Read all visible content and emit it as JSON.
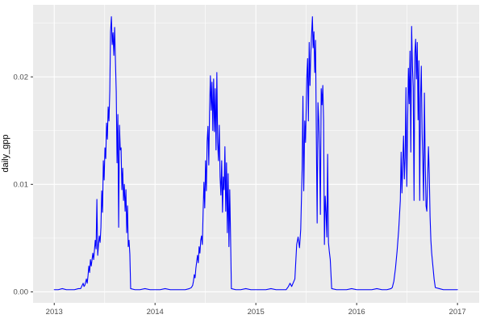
{
  "figure": {
    "panel_bg": "#EBEBEB",
    "grid_color": "#FFFFFF",
    "tick_text_color": "#4D4D4D",
    "tick_mark_color": "#333333",
    "axis_title_color": "#000000",
    "line_color": "#0000FF"
  },
  "chart_data": {
    "type": "line",
    "title": "",
    "xlabel": "",
    "ylabel": "daily_gpp",
    "grid": true,
    "legend": false,
    "xlim": [
      2012.79,
      2017.215
    ],
    "ylim": [
      -0.00102,
      0.0267
    ],
    "x_ticks_major": [
      {
        "value": 2013,
        "label": "2013"
      },
      {
        "value": 2014,
        "label": "2014"
      },
      {
        "value": 2015,
        "label": "2015"
      },
      {
        "value": 2016,
        "label": "2016"
      },
      {
        "value": 2017,
        "label": "2017"
      }
    ],
    "x_ticks_minor": [
      2013.5,
      2014.5,
      2015.5,
      2016.5
    ],
    "y_ticks_major": [
      {
        "value": 0,
        "label": "0.00"
      },
      {
        "value": 0.01,
        "label": "0.01"
      },
      {
        "value": 0.02,
        "label": "0.02"
      }
    ],
    "y_ticks_minor": [
      0.005,
      0.015,
      0.025
    ],
    "series": [
      {
        "name": "daily_gpp",
        "color": "#0000FF",
        "points": [
          [
            2013.0,
            0.0002
          ],
          [
            2013.04,
            0.0002
          ],
          [
            2013.08,
            0.0003
          ],
          [
            2013.12,
            0.0002
          ],
          [
            2013.16,
            0.0002
          ],
          [
            2013.2,
            0.0002
          ],
          [
            2013.24,
            0.0003
          ],
          [
            2013.262,
            0.0003
          ],
          [
            2013.287,
            0.0008
          ],
          [
            2013.295,
            0.0005
          ],
          [
            2013.303,
            0.0006
          ],
          [
            2013.319,
            0.0012
          ],
          [
            2013.327,
            0.0008
          ],
          [
            2013.335,
            0.0015
          ],
          [
            2013.343,
            0.0024
          ],
          [
            2013.351,
            0.0018
          ],
          [
            2013.359,
            0.003
          ],
          [
            2013.367,
            0.0024
          ],
          [
            2013.383,
            0.0036
          ],
          [
            2013.391,
            0.003
          ],
          [
            2013.407,
            0.0048
          ],
          [
            2013.415,
            0.004
          ],
          [
            2013.423,
            0.0086
          ],
          [
            2013.431,
            0.0034
          ],
          [
            2013.439,
            0.0044
          ],
          [
            2013.447,
            0.0052
          ],
          [
            2013.455,
            0.0046
          ],
          [
            2013.463,
            0.006
          ],
          [
            2013.471,
            0.0094
          ],
          [
            2013.479,
            0.0074
          ],
          [
            2013.487,
            0.0122
          ],
          [
            2013.495,
            0.0104
          ],
          [
            2013.503,
            0.0134
          ],
          [
            2013.511,
            0.0124
          ],
          [
            2013.519,
            0.0157
          ],
          [
            2013.527,
            0.0142
          ],
          [
            2013.535,
            0.0172
          ],
          [
            2013.543,
            0.0159
          ],
          [
            2013.551,
            0.0187
          ],
          [
            2013.559,
            0.0242
          ],
          [
            2013.567,
            0.0256
          ],
          [
            2013.575,
            0.023
          ],
          [
            2013.583,
            0.0241
          ],
          [
            2013.591,
            0.022
          ],
          [
            2013.599,
            0.0246
          ],
          [
            2013.607,
            0.0215
          ],
          [
            2013.615,
            0.0186
          ],
          [
            2013.623,
            0.012
          ],
          [
            2013.631,
            0.0165
          ],
          [
            2013.639,
            0.006
          ],
          [
            2013.647,
            0.0155
          ],
          [
            2013.655,
            0.0132
          ],
          [
            2013.663,
            0.0134
          ],
          [
            2013.671,
            0.0095
          ],
          [
            2013.679,
            0.0115
          ],
          [
            2013.687,
            0.0085
          ],
          [
            2013.695,
            0.01
          ],
          [
            2013.703,
            0.0075
          ],
          [
            2013.711,
            0.0095
          ],
          [
            2013.719,
            0.0055
          ],
          [
            2013.727,
            0.008
          ],
          [
            2013.734,
            0.0042
          ],
          [
            2013.742,
            0.0048
          ],
          [
            2013.75,
            0.0035
          ],
          [
            2013.758,
            0.0003
          ],
          [
            2013.8,
            0.0002
          ],
          [
            2013.85,
            0.0002
          ],
          [
            2013.9,
            0.0003
          ],
          [
            2013.95,
            0.0002
          ],
          [
            2014.0,
            0.0002
          ],
          [
            2014.05,
            0.0002
          ],
          [
            2014.1,
            0.0003
          ],
          [
            2014.15,
            0.0002
          ],
          [
            2014.2,
            0.0002
          ],
          [
            2014.25,
            0.0002
          ],
          [
            2014.3,
            0.0002
          ],
          [
            2014.34,
            0.0003
          ],
          [
            2014.36,
            0.0004
          ],
          [
            2014.373,
            0.0006
          ],
          [
            2014.381,
            0.001
          ],
          [
            2014.389,
            0.0016
          ],
          [
            2014.397,
            0.0013
          ],
          [
            2014.405,
            0.0022
          ],
          [
            2014.413,
            0.0028
          ],
          [
            2014.421,
            0.0034
          ],
          [
            2014.429,
            0.0027
          ],
          [
            2014.437,
            0.0042
          ],
          [
            2014.445,
            0.0036
          ],
          [
            2014.453,
            0.0048
          ],
          [
            2014.461,
            0.0052
          ],
          [
            2014.469,
            0.0044
          ],
          [
            2014.477,
            0.0075
          ],
          [
            2014.485,
            0.0102
          ],
          [
            2014.493,
            0.0078
          ],
          [
            2014.501,
            0.0122
          ],
          [
            2014.509,
            0.0094
          ],
          [
            2014.517,
            0.014
          ],
          [
            2014.525,
            0.0154
          ],
          [
            2014.533,
            0.0118
          ],
          [
            2014.541,
            0.017
          ],
          [
            2014.549,
            0.0201
          ],
          [
            2014.557,
            0.0169
          ],
          [
            2014.565,
            0.0195
          ],
          [
            2014.573,
            0.015
          ],
          [
            2014.581,
            0.0198
          ],
          [
            2014.589,
            0.0149
          ],
          [
            2014.597,
            0.0189
          ],
          [
            2014.605,
            0.0132
          ],
          [
            2014.613,
            0.0204
          ],
          [
            2014.621,
            0.0139
          ],
          [
            2014.629,
            0.0122
          ],
          [
            2014.637,
            0.0155
          ],
          [
            2014.645,
            0.0107
          ],
          [
            2014.653,
            0.009
          ],
          [
            2014.661,
            0.0122
          ],
          [
            2014.669,
            0.0074
          ],
          [
            2014.677,
            0.0107
          ],
          [
            2014.685,
            0.0095
          ],
          [
            2014.693,
            0.0135
          ],
          [
            2014.701,
            0.0075
          ],
          [
            2014.709,
            0.012
          ],
          [
            2014.717,
            0.0055
          ],
          [
            2014.725,
            0.011
          ],
          [
            2014.733,
            0.0042
          ],
          [
            2014.741,
            0.0095
          ],
          [
            2014.749,
            0.0052
          ],
          [
            2014.757,
            0.0003
          ],
          [
            2014.8,
            0.0002
          ],
          [
            2014.85,
            0.0002
          ],
          [
            2014.9,
            0.0003
          ],
          [
            2014.95,
            0.0002
          ],
          [
            2015.0,
            0.0002
          ],
          [
            2015.05,
            0.0002
          ],
          [
            2015.1,
            0.0002
          ],
          [
            2015.15,
            0.0003
          ],
          [
            2015.2,
            0.0002
          ],
          [
            2015.25,
            0.0002
          ],
          [
            2015.3,
            0.0002
          ],
          [
            2015.323,
            0.0005
          ],
          [
            2015.339,
            0.0008
          ],
          [
            2015.355,
            0.0005
          ],
          [
            2015.387,
            0.0012
          ],
          [
            2015.405,
            0.0044
          ],
          [
            2015.419,
            0.0051
          ],
          [
            2015.433,
            0.0041
          ],
          [
            2015.445,
            0.0058
          ],
          [
            2015.459,
            0.0114
          ],
          [
            2015.467,
            0.0182
          ],
          [
            2015.475,
            0.0094
          ],
          [
            2015.485,
            0.0159
          ],
          [
            2015.493,
            0.0139
          ],
          [
            2015.505,
            0.0199
          ],
          [
            2015.513,
            0.0217
          ],
          [
            2015.521,
            0.0159
          ],
          [
            2015.529,
            0.0232
          ],
          [
            2015.537,
            0.0192
          ],
          [
            2015.545,
            0.0222
          ],
          [
            2015.553,
            0.024
          ],
          [
            2015.561,
            0.0256
          ],
          [
            2015.568,
            0.0227
          ],
          [
            2015.576,
            0.0242
          ],
          [
            2015.584,
            0.0204
          ],
          [
            2015.592,
            0.0234
          ],
          [
            2015.6,
            0.0144
          ],
          [
            2015.608,
            0.0064
          ],
          [
            2015.616,
            0.0176
          ],
          [
            2015.624,
            0.0159
          ],
          [
            2015.632,
            0.0131
          ],
          [
            2015.64,
            0.0072
          ],
          [
            2015.648,
            0.0189
          ],
          [
            2015.656,
            0.0174
          ],
          [
            2015.664,
            0.0192
          ],
          [
            2015.672,
            0.0159
          ],
          [
            2015.68,
            0.0044
          ],
          [
            2015.688,
            0.0089
          ],
          [
            2015.696,
            0.0074
          ],
          [
            2015.704,
            0.0051
          ],
          [
            2015.712,
            0.0128
          ],
          [
            2015.72,
            0.0046
          ],
          [
            2015.728,
            0.0038
          ],
          [
            2015.738,
            0.003
          ],
          [
            2015.752,
            0.0003
          ],
          [
            2015.8,
            0.0002
          ],
          [
            2015.85,
            0.0002
          ],
          [
            2015.9,
            0.0002
          ],
          [
            2015.95,
            0.0003
          ],
          [
            2016.0,
            0.0002
          ],
          [
            2016.05,
            0.0002
          ],
          [
            2016.1,
            0.0002
          ],
          [
            2016.15,
            0.0002
          ],
          [
            2016.2,
            0.0003
          ],
          [
            2016.25,
            0.0002
          ],
          [
            2016.3,
            0.0002
          ],
          [
            2016.34,
            0.0003
          ],
          [
            2016.353,
            0.0004
          ],
          [
            2016.369,
            0.001
          ],
          [
            2016.385,
            0.0022
          ],
          [
            2016.401,
            0.0038
          ],
          [
            2016.417,
            0.0058
          ],
          [
            2016.433,
            0.0085
          ],
          [
            2016.441,
            0.013
          ],
          [
            2016.449,
            0.0092
          ],
          [
            2016.457,
            0.012
          ],
          [
            2016.465,
            0.0145
          ],
          [
            2016.473,
            0.0105
          ],
          [
            2016.481,
            0.0125
          ],
          [
            2016.489,
            0.019
          ],
          [
            2016.497,
            0.0098
          ],
          [
            2016.505,
            0.0155
          ],
          [
            2016.513,
            0.0208
          ],
          [
            2016.521,
            0.0175
          ],
          [
            2016.529,
            0.0224
          ],
          [
            2016.537,
            0.013
          ],
          [
            2016.545,
            0.0247
          ],
          [
            2016.553,
            0.021
          ],
          [
            2016.561,
            0.019
          ],
          [
            2016.569,
            0.0085
          ],
          [
            2016.577,
            0.0222
          ],
          [
            2016.585,
            0.0235
          ],
          [
            2016.593,
            0.0198
          ],
          [
            2016.601,
            0.0232
          ],
          [
            2016.609,
            0.016
          ],
          [
            2016.617,
            0.0215
          ],
          [
            2016.625,
            0.0085
          ],
          [
            2016.633,
            0.018
          ],
          [
            2016.641,
            0.021
          ],
          [
            2016.649,
            0.0148
          ],
          [
            2016.656,
            0.0122
          ],
          [
            2016.664,
            0.0085
          ],
          [
            2016.672,
            0.0185
          ],
          [
            2016.68,
            0.012
          ],
          [
            2016.688,
            0.008
          ],
          [
            2016.696,
            0.0075
          ],
          [
            2016.704,
            0.0105
          ],
          [
            2016.712,
            0.0135
          ],
          [
            2016.72,
            0.011
          ],
          [
            2016.728,
            0.007
          ],
          [
            2016.736,
            0.0048
          ],
          [
            2016.744,
            0.0036
          ],
          [
            2016.756,
            0.0024
          ],
          [
            2016.768,
            0.0012
          ],
          [
            2016.78,
            0.0004
          ],
          [
            2016.82,
            0.0003
          ],
          [
            2016.86,
            0.0002
          ],
          [
            2016.9,
            0.0002
          ],
          [
            2016.94,
            0.0002
          ],
          [
            2016.97,
            0.0002
          ],
          [
            2017.0,
            0.0002
          ]
        ]
      }
    ]
  }
}
